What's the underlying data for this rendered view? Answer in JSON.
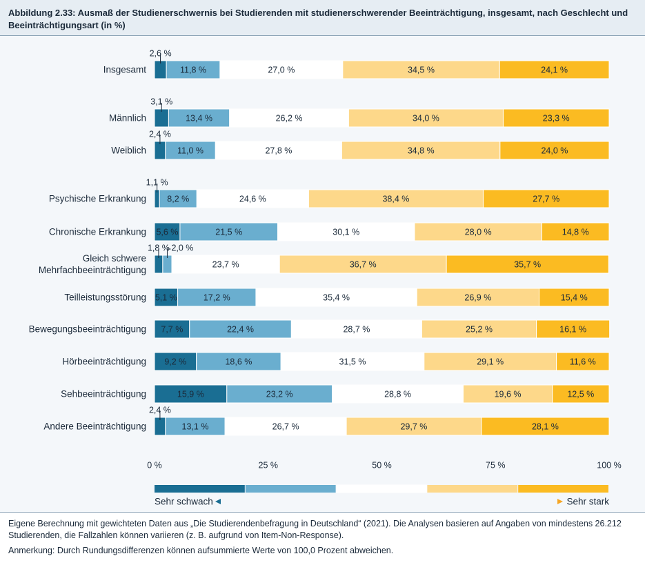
{
  "chart_data": {
    "type": "stacked_bar_horizontal",
    "title": "Abbildung 2.33: Ausmaß der Studienerschwernis bei Studierenden mit studienerschwerender Beeinträchtigung, insgesamt, nach Geschlecht und Beeinträchtigungsart (in %)",
    "categories": [
      "Insgesamt",
      "Männlich",
      "Weiblich",
      "Psychische Erkrankung",
      "Chronische Erkrankung",
      "Gleich schwere Mehrfachbeeinträchtigung",
      "Teilleistungsstörung",
      "Bewegungsbeeinträchtigung",
      "Hörbeeinträchtigung",
      "Sehbeeinträchtigung",
      "Andere Beeinträchtigung"
    ],
    "series": [
      {
        "color": "#1a6e93",
        "values": [
          2.6,
          3.1,
          2.4,
          1.1,
          5.6,
          1.8,
          5.1,
          7.7,
          9.2,
          15.9,
          2.4
        ],
        "value_labels": [
          "2,6 %",
          "3,1 %",
          "2,4 %",
          "1,1 %",
          "5,6 %",
          "1,8 %",
          "5,1 %",
          "7,7 %",
          "9,2 %",
          "15,9 %",
          "2,4 %"
        ]
      },
      {
        "color": "#6aaecf",
        "values": [
          11.8,
          13.4,
          11.0,
          8.2,
          21.5,
          2.0,
          17.2,
          22.4,
          18.6,
          23.2,
          13.1
        ],
        "value_labels": [
          "11,8 %",
          "13,4 %",
          "11,0 %",
          "8,2 %",
          "21,5 %",
          "2,0 %",
          "17,2 %",
          "22,4 %",
          "18,6 %",
          "23,2 %",
          "13,1 %"
        ]
      },
      {
        "color": "#ffffff",
        "values": [
          27.0,
          26.2,
          27.8,
          24.6,
          30.1,
          23.7,
          35.4,
          28.7,
          31.5,
          28.8,
          26.7
        ],
        "value_labels": [
          "27,0 %",
          "26,2 %",
          "27,8 %",
          "24,6 %",
          "30,1 %",
          "23,7 %",
          "35,4 %",
          "28,7 %",
          "31,5 %",
          "28,8 %",
          "26,7 %"
        ]
      },
      {
        "color": "#fdd88a",
        "values": [
          34.5,
          34.0,
          34.8,
          38.4,
          28.0,
          36.7,
          26.9,
          25.2,
          29.1,
          19.6,
          29.7
        ],
        "value_labels": [
          "34,5 %",
          "34,0 %",
          "34,8 %",
          "38,4 %",
          "28,0 %",
          "36,7 %",
          "26,9 %",
          "25,2 %",
          "29,1 %",
          "19,6 %",
          "29,7 %"
        ]
      },
      {
        "color": "#fbbb22",
        "values": [
          24.1,
          23.3,
          24.0,
          27.7,
          14.8,
          35.7,
          15.4,
          16.1,
          11.6,
          12.5,
          28.1
        ],
        "value_labels": [
          "24,1 %",
          "23,3 %",
          "24,0 %",
          "27,7 %",
          "14,8 %",
          "35,7 %",
          "15,4 %",
          "16,1 %",
          "11,6 %",
          "12,5 %",
          "28,1 %"
        ]
      }
    ],
    "xlim": [
      0,
      100
    ],
    "xticks": [
      {
        "value": 0,
        "label": "0 %"
      },
      {
        "value": 25,
        "label": "25 %"
      },
      {
        "value": 50,
        "label": "50 %"
      },
      {
        "value": 75,
        "label": "75 %"
      },
      {
        "value": 100,
        "label": "100 %"
      }
    ],
    "legend_labels": [
      "Sehr schwach",
      "Sehr stark"
    ],
    "source": "Eigene Berechnung mit gewichteten Daten aus „Die Studierendenbefragung in Deutschland“ (2021). Die Analysen basieren auf Angaben von mindestens 26.212 Studierenden, die Fallzahlen können variieren (z. B. aufgrund von Item-Non-Response).",
    "note": "Anmerkung: Durch Rundungsdifferenzen können aufsummierte Werte von 100,0 Prozent abweichen."
  }
}
